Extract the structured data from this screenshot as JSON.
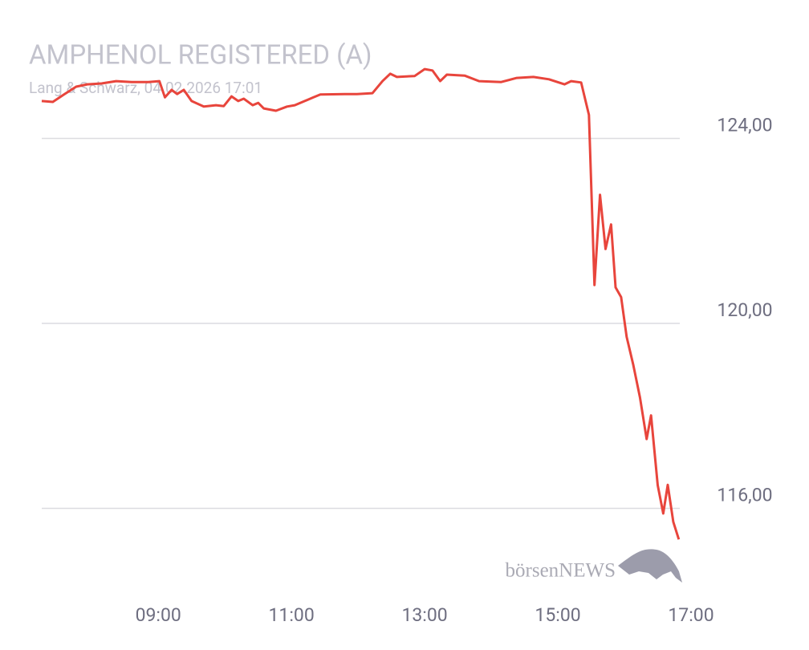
{
  "chart_data": {
    "type": "line",
    "title": "AMPHENOL REGISTERED (A)",
    "subtitle": "Lang & Schwarz, 04.02.2026 17:01",
    "watermark": "börsenNEWS",
    "x": [
      "07:15",
      "07:25",
      "07:35",
      "07:46",
      "07:56",
      "08:09",
      "08:22",
      "08:36",
      "08:51",
      "09:01",
      "09:06",
      "09:12",
      "09:17",
      "09:23",
      "09:30",
      "09:41",
      "09:52",
      "09:59",
      "10:06",
      "10:12",
      "10:17",
      "10:25",
      "10:30",
      "10:35",
      "10:46",
      "10:56",
      "11:03",
      "11:12",
      "11:19",
      "11:26",
      "11:48",
      "11:59",
      "12:13",
      "12:22",
      "12:29",
      "12:35",
      "12:51",
      "13:00",
      "13:07",
      "13:14",
      "13:20",
      "13:36",
      "13:49",
      "14:09",
      "14:23",
      "14:38",
      "14:52",
      "15:06",
      "15:12",
      "15:21",
      "15:28",
      "15:33",
      "15:38",
      "15:43",
      "15:48",
      "15:52",
      "15:57",
      "16:02",
      "16:08",
      "16:14",
      "16:20",
      "16:24",
      "16:30",
      "16:35",
      "16:39",
      "16:44",
      "16:49"
    ],
    "series": [
      {
        "name": "AMPHENOL REGISTERED (A)",
        "color": "#e8453c",
        "values": [
          124.81,
          124.79,
          124.95,
          125.12,
          125.17,
          125.19,
          125.24,
          125.22,
          125.22,
          125.24,
          124.89,
          125.05,
          124.96,
          125.05,
          124.81,
          124.69,
          124.72,
          124.7,
          124.91,
          124.81,
          124.86,
          124.72,
          124.77,
          124.65,
          124.6,
          124.69,
          124.72,
          124.81,
          124.88,
          124.95,
          124.96,
          124.96,
          124.98,
          125.24,
          125.4,
          125.33,
          125.35,
          125.5,
          125.47,
          125.24,
          125.38,
          125.36,
          125.24,
          125.22,
          125.31,
          125.33,
          125.28,
          125.17,
          125.24,
          125.21,
          124.51,
          120.83,
          122.78,
          121.61,
          122.14,
          120.78,
          120.57,
          119.71,
          119.1,
          118.4,
          117.5,
          118.01,
          116.5,
          115.89,
          116.51,
          115.71,
          115.33
        ]
      }
    ],
    "xlim": [
      "07:15",
      "17:00"
    ],
    "xticks": [
      "09:00",
      "11:00",
      "13:00",
      "15:00",
      "17:00"
    ],
    "ylim": [
      114.5,
      126.3
    ],
    "yticks": [
      {
        "value": 116,
        "label": "116,00"
      },
      {
        "value": 120,
        "label": "120,00"
      },
      {
        "value": 124,
        "label": "124,00"
      }
    ],
    "grid": true
  }
}
